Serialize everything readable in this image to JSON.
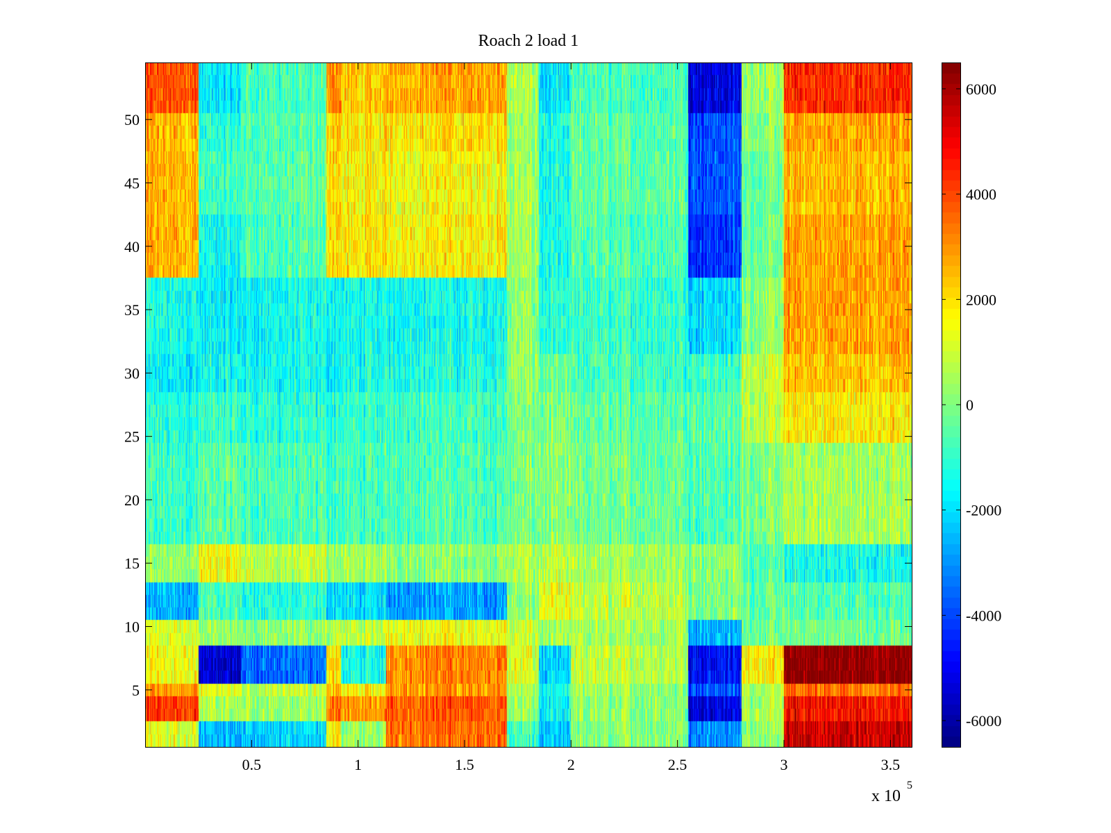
{
  "chart_data": {
    "type": "heatmap",
    "title": "Roach 2 load 1",
    "xlabel": "",
    "ylabel": "",
    "x_multiplier_label": "x 10",
    "x_multiplier_exponent": "5",
    "xlim": [
      0,
      3.6
    ],
    "ylim": [
      0.5,
      54.5
    ],
    "x_ticks": [
      0.5,
      1,
      1.5,
      2,
      2.5,
      3,
      3.5
    ],
    "x_tick_labels": [
      "0.5",
      "1",
      "1.5",
      "2",
      "2.5",
      "3",
      "3.5"
    ],
    "y_ticks": [
      5,
      10,
      15,
      20,
      25,
      30,
      35,
      40,
      45,
      50
    ],
    "y_tick_labels": [
      "5",
      "10",
      "15",
      "20",
      "25",
      "30",
      "35",
      "40",
      "45",
      "50"
    ],
    "colorbar": {
      "colormap": "jet",
      "clim": [
        -6500,
        6500
      ],
      "ticks": [
        -6000,
        -4000,
        -2000,
        0,
        2000,
        4000,
        6000
      ],
      "tick_labels": [
        "-6000",
        "-4000",
        "-2000",
        "0",
        "2000",
        "4000",
        "6000"
      ]
    },
    "rows": 54,
    "column_bands_x": [
      0,
      0.25,
      0.45,
      0.85,
      0.92,
      1.13,
      1.7,
      1.85,
      2.0,
      2.55,
      2.8,
      3.0,
      3.6
    ],
    "row_groups": [
      {
        "rows": [
          1,
          2
        ],
        "band_levels": [
          1200,
          -2600,
          -2200,
          1800,
          200,
          3500,
          -800,
          -2500,
          100,
          -3000,
          300,
          5500
        ]
      },
      {
        "rows": [
          3,
          4
        ],
        "band_levels": [
          4200,
          500,
          300,
          3600,
          2800,
          3800,
          400,
          -1800,
          200,
          -5200,
          600,
          4800
        ]
      },
      {
        "rows": [
          5
        ],
        "band_levels": [
          3000,
          1200,
          800,
          2500,
          1500,
          3000,
          600,
          -1500,
          300,
          -3800,
          500,
          3500
        ]
      },
      {
        "rows": [
          6,
          7,
          8
        ],
        "band_levels": [
          1500,
          -5500,
          -3500,
          2200,
          -1500,
          3200,
          1200,
          -2200,
          800,
          -4800,
          1800,
          6400
        ]
      },
      {
        "rows": [
          9,
          10
        ],
        "band_levels": [
          1200,
          300,
          200,
          900,
          800,
          1500,
          800,
          300,
          500,
          -2500,
          -200,
          -200
        ]
      },
      {
        "rows": [
          11,
          12,
          13
        ],
        "band_levels": [
          -2600,
          -800,
          -1200,
          -2000,
          -2000,
          -2800,
          200,
          1200,
          800,
          0,
          -300,
          -600
        ]
      },
      {
        "rows": [
          14,
          15,
          16
        ],
        "band_levels": [
          200,
          1500,
          800,
          300,
          400,
          200,
          600,
          700,
          500,
          200,
          -600,
          -1400
        ]
      },
      {
        "rows": [
          17,
          18,
          19,
          20,
          21,
          22,
          23,
          24
        ],
        "band_levels": [
          -900,
          -500,
          -700,
          -800,
          -800,
          -600,
          -100,
          0,
          -200,
          -600,
          0,
          500
        ]
      },
      {
        "rows": [
          25,
          26,
          27,
          28
        ],
        "band_levels": [
          -1200,
          -900,
          -1100,
          -1200,
          -1000,
          -800,
          0,
          -100,
          -400,
          -500,
          800,
          1800
        ]
      },
      {
        "rows": [
          29,
          30,
          31
        ],
        "band_levels": [
          -1800,
          -1500,
          -1500,
          -1600,
          -1400,
          -1200,
          200,
          -400,
          -800,
          -800,
          900,
          2400
        ]
      },
      {
        "rows": [
          32,
          33,
          34,
          35,
          36,
          37
        ],
        "band_levels": [
          -1400,
          -1800,
          -1500,
          -1400,
          -1500,
          -1400,
          200,
          -1200,
          -900,
          -2000,
          200,
          2800
        ]
      },
      {
        "rows": [
          38,
          39,
          40,
          41,
          42
        ],
        "band_levels": [
          2600,
          -1600,
          -700,
          2200,
          1800,
          1800,
          400,
          -1500,
          -600,
          -4200,
          -200,
          2800
        ]
      },
      {
        "rows": [
          43,
          44,
          45,
          46,
          47
        ],
        "band_levels": [
          2600,
          -900,
          -500,
          2200,
          1600,
          1600,
          400,
          -1500,
          -400,
          -3800,
          -300,
          2500
        ]
      },
      {
        "rows": [
          48,
          49,
          50
        ],
        "band_levels": [
          2500,
          -1200,
          -600,
          2300,
          1800,
          2000,
          300,
          -1400,
          -500,
          -3800,
          100,
          2800
        ]
      },
      {
        "rows": [
          51,
          52,
          53,
          54
        ],
        "band_levels": [
          3800,
          -1800,
          -800,
          3200,
          2200,
          2800,
          600,
          -2000,
          -700,
          -5200,
          400,
          4400
        ]
      }
    ]
  }
}
